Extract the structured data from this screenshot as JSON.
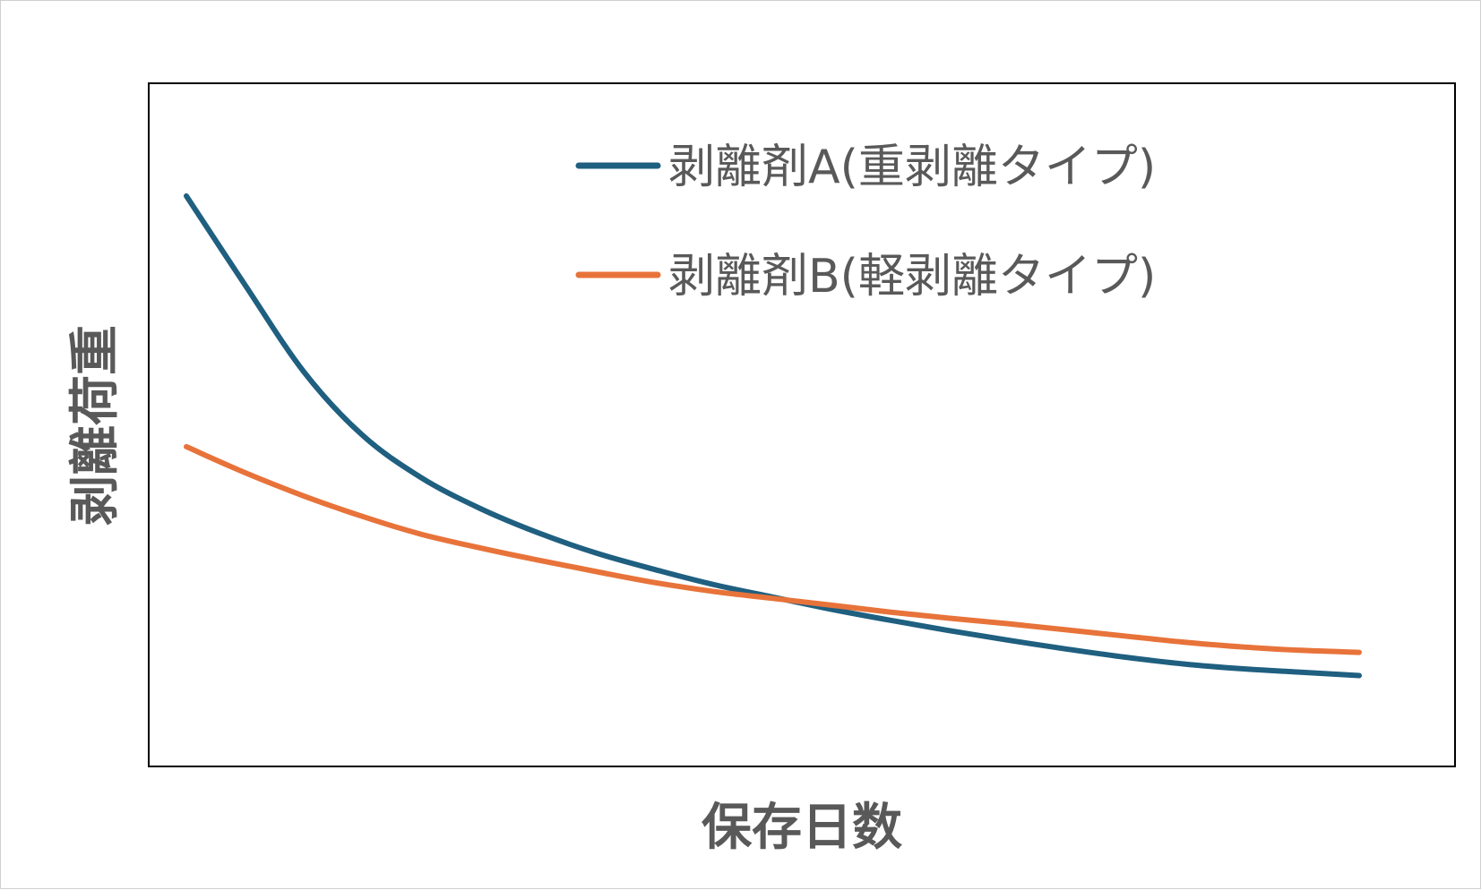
{
  "chart_data": {
    "type": "line",
    "title": "",
    "xlabel": "保存日数",
    "ylabel": "剥離荷重",
    "x_ticks_shown": false,
    "y_ticks_shown": false,
    "grid": false,
    "legend_position": "top-right",
    "xlim": [
      0,
      100
    ],
    "ylim": [
      0,
      100
    ],
    "x": [
      0,
      5,
      10,
      15,
      20,
      25,
      30,
      35,
      40,
      45,
      50,
      55,
      60,
      65,
      70,
      75,
      80,
      85,
      90,
      95,
      100
    ],
    "series": [
      {
        "name": "剥離剤A(重剥離タイプ)",
        "color": "#1f5f80",
        "values": [
          83.5,
          70.5,
          57.8,
          48.5,
          42.3,
          37.8,
          34.2,
          31.2,
          28.8,
          26.6,
          24.8,
          23.0,
          21.4,
          19.9,
          18.5,
          17.2,
          16.0,
          15.0,
          14.3,
          13.8,
          13.3
        ]
      },
      {
        "name": "剥離剤B(軽剥離タイプ)",
        "color": "#e8733a",
        "values": [
          46.8,
          43.0,
          39.6,
          36.6,
          34.0,
          32.0,
          30.2,
          28.5,
          26.9,
          25.6,
          24.6,
          23.6,
          22.6,
          21.7,
          20.9,
          20.0,
          19.1,
          18.2,
          17.5,
          17.0,
          16.7
        ]
      }
    ]
  }
}
